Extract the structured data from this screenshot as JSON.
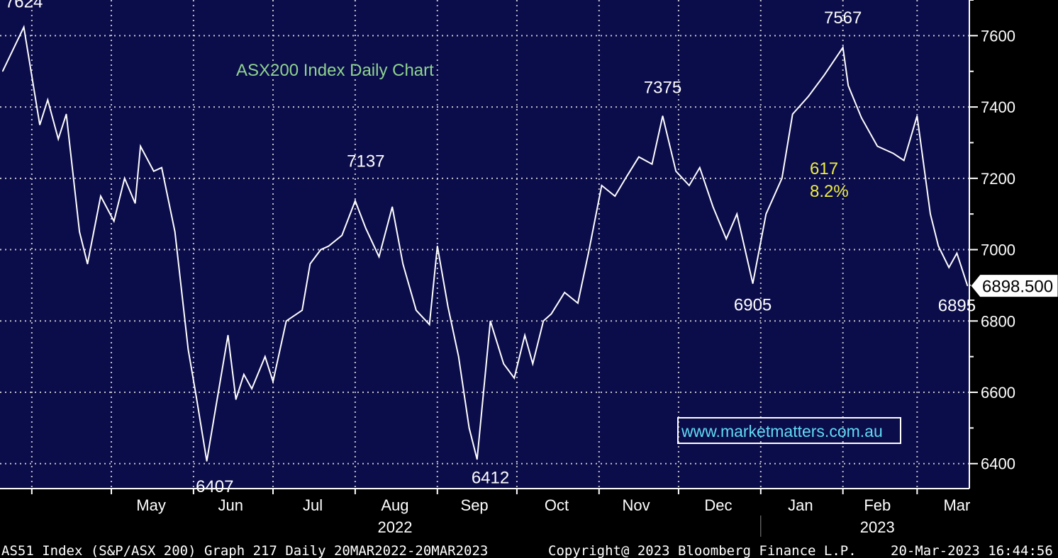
{
  "chart_data": {
    "type": "line",
    "title": "ASX200 Index Daily Chart",
    "ylim": [
      6330,
      7700
    ],
    "y_ticks": [
      6400,
      6600,
      6800,
      7000,
      7200,
      7400,
      7600
    ],
    "y_tick_labels": [
      "6400",
      "6600",
      "6800",
      "7000",
      "7200",
      "7400",
      "7600"
    ],
    "grid": true,
    "months": [
      "May",
      "Jun",
      "Jul",
      "Aug",
      "Sep",
      "Oct",
      "Nov",
      "Dec",
      "Jan",
      "Feb",
      "Mar"
    ],
    "years": [
      "2022",
      "2023"
    ],
    "last_value_label": "6898.500",
    "annotations": [
      {
        "text": "7624"
      },
      {
        "text": "6407"
      },
      {
        "text": "7137"
      },
      {
        "text": "6412"
      },
      {
        "text": "7375"
      },
      {
        "text": "6905"
      },
      {
        "text": "7567"
      },
      {
        "text": "6895"
      }
    ],
    "move_label": {
      "points": "617",
      "percent": "8.2%"
    },
    "series": [
      {
        "x": [
          "2022-03-21",
          "2022-03-29",
          "2022-04-04",
          "2022-04-07",
          "2022-04-11",
          "2022-04-14",
          "2022-04-19",
          "2022-04-22",
          "2022-04-27",
          "2022-05-02",
          "2022-05-06",
          "2022-05-10",
          "2022-05-12",
          "2022-05-17",
          "2022-05-20",
          "2022-05-25",
          "2022-05-30",
          "2022-06-02",
          "2022-06-06",
          "2022-06-09",
          "2022-06-14",
          "2022-06-17",
          "2022-06-20",
          "2022-06-23",
          "2022-06-28",
          "2022-07-01",
          "2022-07-06",
          "2022-07-12",
          "2022-07-15",
          "2022-07-19",
          "2022-07-22",
          "2022-07-27",
          "2022-08-01",
          "2022-08-05",
          "2022-08-10",
          "2022-08-15",
          "2022-08-19",
          "2022-08-24",
          "2022-08-29",
          "2022-09-01",
          "2022-09-05",
          "2022-09-09",
          "2022-09-13",
          "2022-09-16",
          "2022-09-21",
          "2022-09-26",
          "2022-09-30",
          "2022-10-04",
          "2022-10-07",
          "2022-10-11",
          "2022-10-14",
          "2022-10-19",
          "2022-10-24",
          "2022-10-28",
          "2022-11-02",
          "2022-11-07",
          "2022-11-11",
          "2022-11-16",
          "2022-11-21",
          "2022-11-25",
          "2022-11-30",
          "2022-12-05",
          "2022-12-09",
          "2022-12-14",
          "2022-12-19",
          "2022-12-23",
          "2022-12-29",
          "2023-01-03",
          "2023-01-09",
          "2023-01-13",
          "2023-01-19",
          "2023-01-25",
          "2023-02-01",
          "2023-02-03",
          "2023-02-08",
          "2023-02-14",
          "2023-02-20",
          "2023-02-24",
          "2023-03-01",
          "2023-03-06",
          "2023-03-09",
          "2023-03-13",
          "2023-03-16",
          "2023-03-20"
        ],
        "values": [
          7500,
          7624,
          7350,
          7420,
          7310,
          7380,
          7050,
          6960,
          7150,
          7080,
          7200,
          7130,
          7290,
          7220,
          7230,
          7050,
          6720,
          6590,
          6407,
          6540,
          6760,
          6580,
          6650,
          6610,
          6700,
          6630,
          6800,
          6830,
          6960,
          7000,
          7010,
          7040,
          7137,
          7060,
          6980,
          7120,
          6960,
          6830,
          6790,
          7010,
          6840,
          6700,
          6500,
          6412,
          6800,
          6680,
          6640,
          6760,
          6680,
          6800,
          6820,
          6880,
          6850,
          6990,
          7180,
          7150,
          7200,
          7260,
          7240,
          7375,
          7220,
          7180,
          7230,
          7120,
          7030,
          7100,
          6905,
          7100,
          7200,
          7380,
          7430,
          7490,
          7567,
          7460,
          7370,
          7290,
          7270,
          7250,
          7375,
          7100,
          7010,
          6950,
          6990,
          6898.5
        ]
      }
    ]
  },
  "watermark": "www.marketmatters.com.au",
  "footer": {
    "left": "AS51 Index (S&P/ASX 200) Graph 217  Daily 20MAR2022-20MAR2023",
    "center": "Copyright@ 2023 Bloomberg Finance L.P.",
    "right": "20-Mar-2023 16:44:56"
  },
  "colors": {
    "plot_bg": "#0b0c4a",
    "grid": "#c4c4cc",
    "line": "#ffffff",
    "title": "#8fd48f",
    "move_label": "#eeee40",
    "watermark": "#5fdcf5"
  }
}
